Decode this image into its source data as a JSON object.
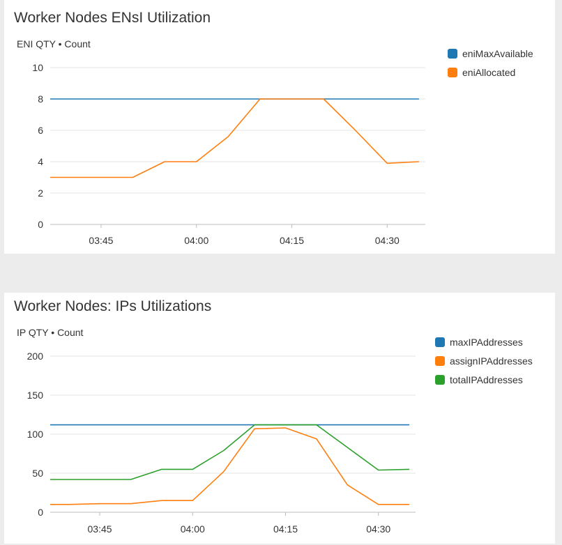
{
  "panels": [
    {
      "id": "eni",
      "title": "Worker Nodes ENsI Utilization",
      "y_axis_label": "ENI QTY • Count",
      "legend": [
        {
          "label": "eniMaxAvailable",
          "color": "#1f77b4"
        },
        {
          "label": "eniAllocated",
          "color": "#ff7f0e"
        }
      ]
    },
    {
      "id": "ip",
      "title": "Worker Nodes: IPs Utilizations",
      "y_axis_label": "IP QTY • Count",
      "legend": [
        {
          "label": "maxIPAddresses",
          "color": "#1f77b4"
        },
        {
          "label": "assignIPAddresses",
          "color": "#ff7f0e"
        },
        {
          "label": "totalIPAddresses",
          "color": "#2ca02c"
        }
      ]
    }
  ],
  "chart_data": [
    {
      "type": "line",
      "title": "Worker Nodes ENsI Utilization",
      "ylabel": "ENI QTY • Count",
      "xlabel": "",
      "ylim": [
        0,
        10
      ],
      "yticks": [
        0,
        2,
        4,
        6,
        8,
        10
      ],
      "xticks": [
        "03:45",
        "04:00",
        "04:15",
        "04:30"
      ],
      "x_time_range": [
        "03:37",
        "04:36"
      ],
      "grid": true,
      "legend_position": "right",
      "series": [
        {
          "name": "eniMaxAvailable",
          "color": "#1f77b4",
          "x": [
            "03:37",
            "03:40",
            "03:45",
            "03:50",
            "03:55",
            "04:00",
            "04:05",
            "04:10",
            "04:15",
            "04:20",
            "04:25",
            "04:30",
            "04:35"
          ],
          "y": [
            8,
            8,
            8,
            8,
            8,
            8,
            8,
            8,
            8,
            8,
            8,
            8,
            8
          ]
        },
        {
          "name": "eniAllocated",
          "color": "#ff7f0e",
          "x": [
            "03:37",
            "03:40",
            "03:45",
            "03:50",
            "03:55",
            "04:00",
            "04:05",
            "04:10",
            "04:15",
            "04:20",
            "04:25",
            "04:30",
            "04:35"
          ],
          "y": [
            3,
            3,
            3,
            3,
            4,
            4,
            5.6,
            8,
            8,
            8,
            6,
            3.9,
            4
          ]
        }
      ]
    },
    {
      "type": "line",
      "title": "Worker Nodes: IPs Utilizations",
      "ylabel": "IP QTY • Count",
      "xlabel": "",
      "ylim": [
        0,
        200
      ],
      "yticks": [
        0,
        50,
        100,
        150,
        200
      ],
      "xticks": [
        "03:45",
        "04:00",
        "04:15",
        "04:30"
      ],
      "x_time_range": [
        "03:37",
        "04:36"
      ],
      "grid": true,
      "legend_position": "right",
      "series": [
        {
          "name": "maxIPAddresses",
          "color": "#1f77b4",
          "x": [
            "03:37",
            "03:40",
            "03:45",
            "03:50",
            "03:55",
            "04:00",
            "04:05",
            "04:10",
            "04:15",
            "04:20",
            "04:25",
            "04:30",
            "04:35"
          ],
          "y": [
            112,
            112,
            112,
            112,
            112,
            112,
            112,
            112,
            112,
            112,
            112,
            112,
            112
          ]
        },
        {
          "name": "assignIPAddresses",
          "color": "#ff7f0e",
          "x": [
            "03:37",
            "03:40",
            "03:45",
            "03:50",
            "03:55",
            "04:00",
            "04:05",
            "04:10",
            "04:15",
            "04:20",
            "04:25",
            "04:30",
            "04:35"
          ],
          "y": [
            10,
            10,
            11,
            11,
            15,
            15,
            52,
            107,
            108,
            94,
            35,
            10,
            10
          ]
        },
        {
          "name": "totalIPAddresses",
          "color": "#2ca02c",
          "x": [
            "03:37",
            "03:40",
            "03:45",
            "03:50",
            "03:55",
            "04:00",
            "04:05",
            "04:10",
            "04:15",
            "04:20",
            "04:25",
            "04:30",
            "04:35"
          ],
          "y": [
            42,
            42,
            42,
            42,
            55,
            55,
            79,
            112,
            112,
            112,
            83,
            54,
            55
          ]
        }
      ]
    }
  ]
}
